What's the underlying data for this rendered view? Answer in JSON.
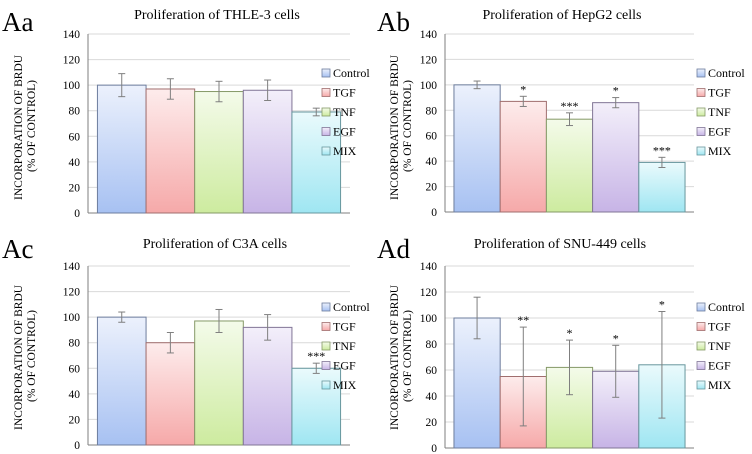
{
  "colors": {
    "Control": "#a7c1f2",
    "TGF": "#f6a9a9",
    "TNF": "#cdeb9f",
    "EGF": "#c7b4e6",
    "MIX": "#9fe6f2",
    "axis": "#7f7f7f",
    "grid": "#d9d9d9"
  },
  "chart_data": [
    {
      "panel_label": "Aa",
      "type": "bar",
      "title": "Proliferation  of THLE-3 cells",
      "ylabel_line1": "INCORPORATION OF BRDU",
      "ylabel_line2": "(% OF CONTROL)",
      "ylim": [
        0,
        140
      ],
      "yticks": [
        "0",
        "20",
        "40",
        "60",
        "80",
        "100",
        "120",
        "140"
      ],
      "categories": [
        "Control",
        "TGF",
        "TNF",
        "EGF",
        "MIX"
      ],
      "values": [
        100,
        97,
        95,
        96,
        79
      ],
      "errors": [
        9,
        8,
        8,
        8,
        3
      ],
      "significance": [
        "",
        "",
        "",
        "",
        ""
      ],
      "legend": [
        "Control",
        "TGF",
        "TNF",
        "EGF",
        "MIX"
      ],
      "grid": true
    },
    {
      "panel_label": "Ab",
      "type": "bar",
      "title": "Proliferation  of HepG2 cells",
      "ylabel_line1": "INCORPORATION OF BRDU",
      "ylabel_line2": "(% OF CONTROL)",
      "ylim": [
        0,
        140
      ],
      "yticks": [
        "0",
        "20",
        "40",
        "60",
        "80",
        "100",
        "120",
        "140"
      ],
      "categories": [
        "Control",
        "TGF",
        "TNF",
        "EGF",
        "MIX"
      ],
      "values": [
        100,
        87,
        73,
        86,
        39
      ],
      "errors": [
        3,
        4,
        5,
        4,
        4
      ],
      "significance": [
        "",
        "*",
        "***",
        "*",
        "***"
      ],
      "legend": [
        "Control",
        "TGF",
        "TNF",
        "EGF",
        "MIX"
      ],
      "grid": true
    },
    {
      "panel_label": "Ac",
      "type": "bar",
      "title": "Proliferation  of C3A cells",
      "ylabel_line1": "INCORPORATION OF BRDU",
      "ylabel_line2": "(% OF CONTROL)",
      "ylim": [
        0,
        140
      ],
      "yticks": [
        "0",
        "20",
        "40",
        "60",
        "80",
        "100",
        "120",
        "140"
      ],
      "categories": [
        "Control",
        "TGF",
        "TNF",
        "EGF",
        "MIX"
      ],
      "values": [
        100,
        80,
        97,
        92,
        60
      ],
      "errors": [
        4,
        8,
        9,
        10,
        4
      ],
      "significance": [
        "",
        "",
        "",
        "",
        "***"
      ],
      "legend": [
        "Control",
        "TGF",
        "TNF",
        "EGF",
        "MIX"
      ],
      "grid": true
    },
    {
      "panel_label": "Ad",
      "type": "bar",
      "title": "Proliferation  of SNU-449 cells",
      "ylabel_line1": "INCORPORATION OF BRDU",
      "ylabel_line2": "(% OF CONTROL)",
      "ylim": [
        0,
        140
      ],
      "yticks": [
        "0",
        "20",
        "40",
        "60",
        "80",
        "100",
        "120",
        "140"
      ],
      "categories": [
        "Control",
        "TGF",
        "TNF",
        "EGF",
        "MIX"
      ],
      "values": [
        100,
        55,
        62,
        59,
        64
      ],
      "errors": [
        16,
        38,
        21,
        20,
        41
      ],
      "significance": [
        "",
        "**",
        "*",
        "*",
        "*"
      ],
      "legend": [
        "Control",
        "TGF",
        "TNF",
        "EGF",
        "MIX"
      ],
      "grid": true
    }
  ]
}
